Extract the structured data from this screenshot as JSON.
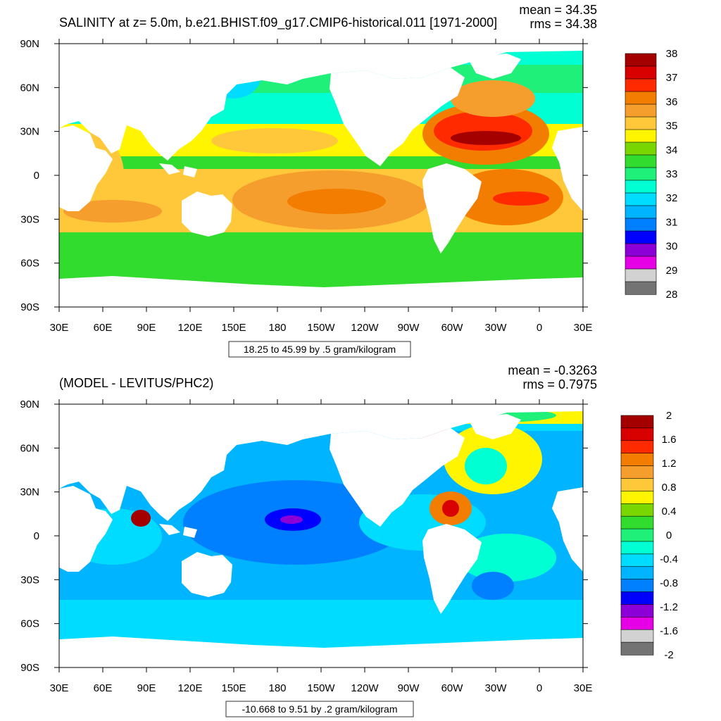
{
  "chart_data": [
    {
      "type": "heatmap",
      "title": "SALINITY at z=   5.0m, b.e21.BHIST.f09_g17.CMIP6-historical.011 [1971-2000]",
      "stats": {
        "mean": "mean = 34.35",
        "rms": "rms = 34.38"
      },
      "x_ticks": [
        "30E",
        "60E",
        "90E",
        "120E",
        "150E",
        "180",
        "150W",
        "120W",
        "90W",
        "60W",
        "30W",
        "0",
        "30E"
      ],
      "y_ticks": [
        "90N",
        "60N",
        "30N",
        "0",
        "30S",
        "60S",
        "90S"
      ],
      "xlim": [
        "30E",
        "30E"
      ],
      "ylim": [
        "90S",
        "90N"
      ],
      "range_note": "18.25 to 45.99 by .5 gram/kilogram",
      "colorbar": {
        "labels": [
          "38",
          "37",
          "36",
          "35",
          "34",
          "33",
          "32",
          "31",
          "30",
          "29",
          "28"
        ],
        "colors": [
          "#a50000",
          "#d90000",
          "#ff2a00",
          "#f27d00",
          "#f59e2e",
          "#ffc83a",
          "#fff500",
          "#7ad600",
          "#32dc2f",
          "#1ef07a",
          "#00ffd2",
          "#00dcff",
          "#00b4ff",
          "#0080ff",
          "#0000ff",
          "#8c00d7",
          "#e600e6",
          "#d2d2d2",
          "#737373"
        ]
      }
    },
    {
      "type": "heatmap",
      "title": "(MODEL - LEVITUS/PHC2)",
      "stats": {
        "mean": "mean = -0.3263",
        "rms": "rms = 0.7975"
      },
      "x_ticks": [
        "30E",
        "60E",
        "90E",
        "120E",
        "150E",
        "180",
        "150W",
        "120W",
        "90W",
        "60W",
        "30W",
        "0",
        "30E"
      ],
      "y_ticks": [
        "90N",
        "60N",
        "30N",
        "0",
        "30S",
        "60S",
        "90S"
      ],
      "xlim": [
        "30E",
        "30E"
      ],
      "ylim": [
        "90S",
        "90N"
      ],
      "range_note": "-10.668 to 9.51 by .2 gram/kilogram",
      "colorbar": {
        "labels": [
          "2",
          "1.6",
          "1.2",
          "0.8",
          "0.4",
          "0",
          "-0.4",
          "-0.8",
          "-1.2",
          "-1.6",
          "-2"
        ],
        "colors": [
          "#a50000",
          "#d90000",
          "#ff2a00",
          "#f27d00",
          "#f59e2e",
          "#ffc83a",
          "#fff500",
          "#7ad600",
          "#32dc2f",
          "#1ef07a",
          "#00ffd2",
          "#00dcff",
          "#00b4ff",
          "#0080ff",
          "#0000ff",
          "#8c00d7",
          "#e600e6",
          "#d2d2d2",
          "#737373"
        ]
      }
    }
  ]
}
